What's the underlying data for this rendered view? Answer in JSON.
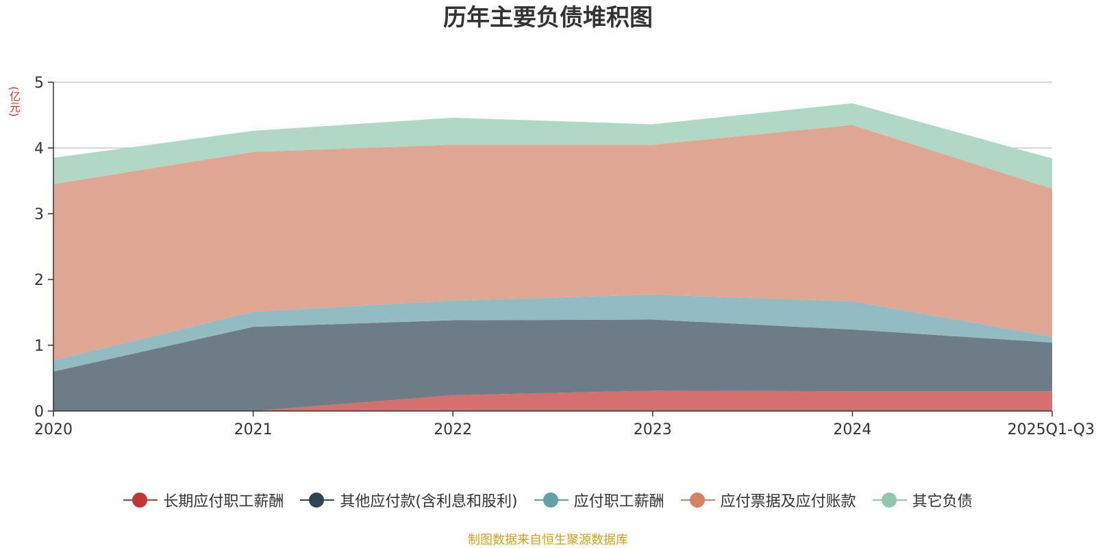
{
  "chart_data": {
    "type": "area",
    "stacked": true,
    "title": "历年主要负债堆积图",
    "ylabel": "(亿元)",
    "categories": [
      "2020",
      "2021",
      "2022",
      "2023",
      "2024",
      "2025Q1-Q3"
    ],
    "ylim": [
      0,
      5
    ],
    "yticks": [
      0,
      1,
      2,
      3,
      4,
      5
    ],
    "grid": true,
    "legend_position": "bottom",
    "series": [
      {
        "name": "长期应付职工薪酬",
        "color": "#c23531",
        "fill": "#d4706e",
        "values": [
          0,
          0,
          0.24,
          0.31,
          0.3,
          0.3
        ]
      },
      {
        "name": "其他应付款(含利息和股利)",
        "color": "#2f4554",
        "fill": "#6e7c87",
        "values": [
          0.6,
          1.28,
          1.14,
          1.08,
          0.94,
          0.74
        ]
      },
      {
        "name": "应付职工薪酬",
        "color": "#61a0a8",
        "fill": "#93bbc2",
        "values": [
          0.17,
          0.23,
          0.3,
          0.38,
          0.43,
          0.09
        ]
      },
      {
        "name": "应付票据及应付账款",
        "color": "#d48265",
        "fill": "#dfa793",
        "values": [
          2.68,
          2.43,
          2.37,
          2.28,
          2.68,
          2.25
        ]
      },
      {
        "name": "其它负债",
        "color": "#91c7ae",
        "fill": "#b1d8c6",
        "values": [
          0.4,
          0.32,
          0.41,
          0.31,
          0.33,
          0.46
        ]
      }
    ]
  },
  "source": "制图数据来自恒生聚源数据库"
}
